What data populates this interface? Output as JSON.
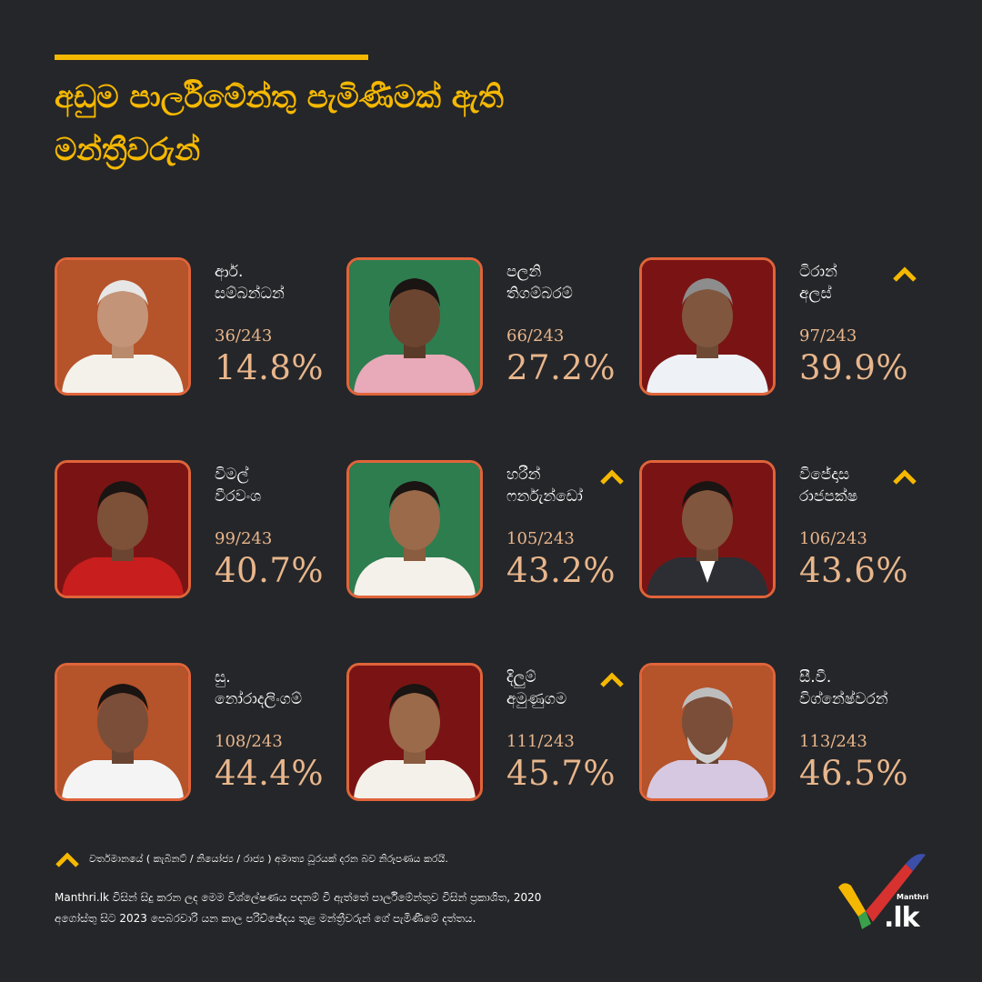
{
  "title": {
    "line1": "අඩුම පාර්ලිමේන්තු පැමිණීමක් ඇති",
    "line2": "මන්ත්‍රීවරුන්"
  },
  "members": [
    {
      "name_line1": "ආර්.",
      "name_line2": "සම්බන්ධන්",
      "attendance": "36/243",
      "percent": "14.8%",
      "has_minister_role": false,
      "bg_color": "#b5532a"
    },
    {
      "name_line1": "පලනි",
      "name_line2": "තිගම්බරම්",
      "attendance": "66/243",
      "percent": "27.2%",
      "has_minister_role": false,
      "bg_color": "#2e7d4f"
    },
    {
      "name_line1": "ටිරාන්",
      "name_line2": "අලස්",
      "attendance": "97/243",
      "percent": "39.9%",
      "has_minister_role": true,
      "bg_color": "#7a1414"
    },
    {
      "name_line1": "විමල්",
      "name_line2": "වීරවංශ",
      "attendance": "99/243",
      "percent": "40.7%",
      "has_minister_role": false,
      "bg_color": "#7a1414"
    },
    {
      "name_line1": "හරීන්",
      "name_line2": "ෆර්නැන්ඩෝ",
      "attendance": "105/243",
      "percent": "43.2%",
      "has_minister_role": true,
      "bg_color": "#2e7d4f"
    },
    {
      "name_line1": "විජේදාස",
      "name_line2": "රාජපක්ෂ",
      "attendance": "106/243",
      "percent": "43.6%",
      "has_minister_role": true,
      "bg_color": "#7a1414"
    },
    {
      "name_line1": "සු.",
      "name_line2": "නෝරාදලිංගම්",
      "attendance": "108/243",
      "percent": "44.4%",
      "has_minister_role": false,
      "bg_color": "#b5532a"
    },
    {
      "name_line1": "දිලුම්",
      "name_line2": "අමුණුගම",
      "attendance": "111/243",
      "percent": "45.7%",
      "has_minister_role": true,
      "bg_color": "#7a1414"
    },
    {
      "name_line1": "සී.වී.",
      "name_line2": "විග්නේෂ්වරන්",
      "attendance": "113/243",
      "percent": "46.5%",
      "has_minister_role": false,
      "bg_color": "#b5532a"
    }
  ],
  "legend": {
    "icon": "chevron-up-icon",
    "text": "වර්තමානයේ ( කැබිනට් / නියෝජ්‍ය / රාජ්‍ය ) අමාත්‍ය ධූරයක් දරන බව නිරූපණය කරයි."
  },
  "footnote": {
    "line1": "Manthri.lk විසින් සිදු කරන ලද මෙම විශ්ලේෂණය පදනම් වී ඇත්තේ පාර්ලිමේන්තුව විසින් ප්‍රකාශිත, 2020",
    "line2": "අගෝස්තු සිට 2023 පෙබරවාරි යන කාල පරිච්ඡේදය තුළ මන්ත්‍රීවරුන් ගේ පැමිණීමේ දත්තය."
  },
  "logo": {
    "brand": "Manthri",
    "suffix": ".lk"
  },
  "colors": {
    "background": "#252629",
    "accent": "#f5b800",
    "photo_border": "#e0643a",
    "stat_text": "#e8b68c"
  }
}
